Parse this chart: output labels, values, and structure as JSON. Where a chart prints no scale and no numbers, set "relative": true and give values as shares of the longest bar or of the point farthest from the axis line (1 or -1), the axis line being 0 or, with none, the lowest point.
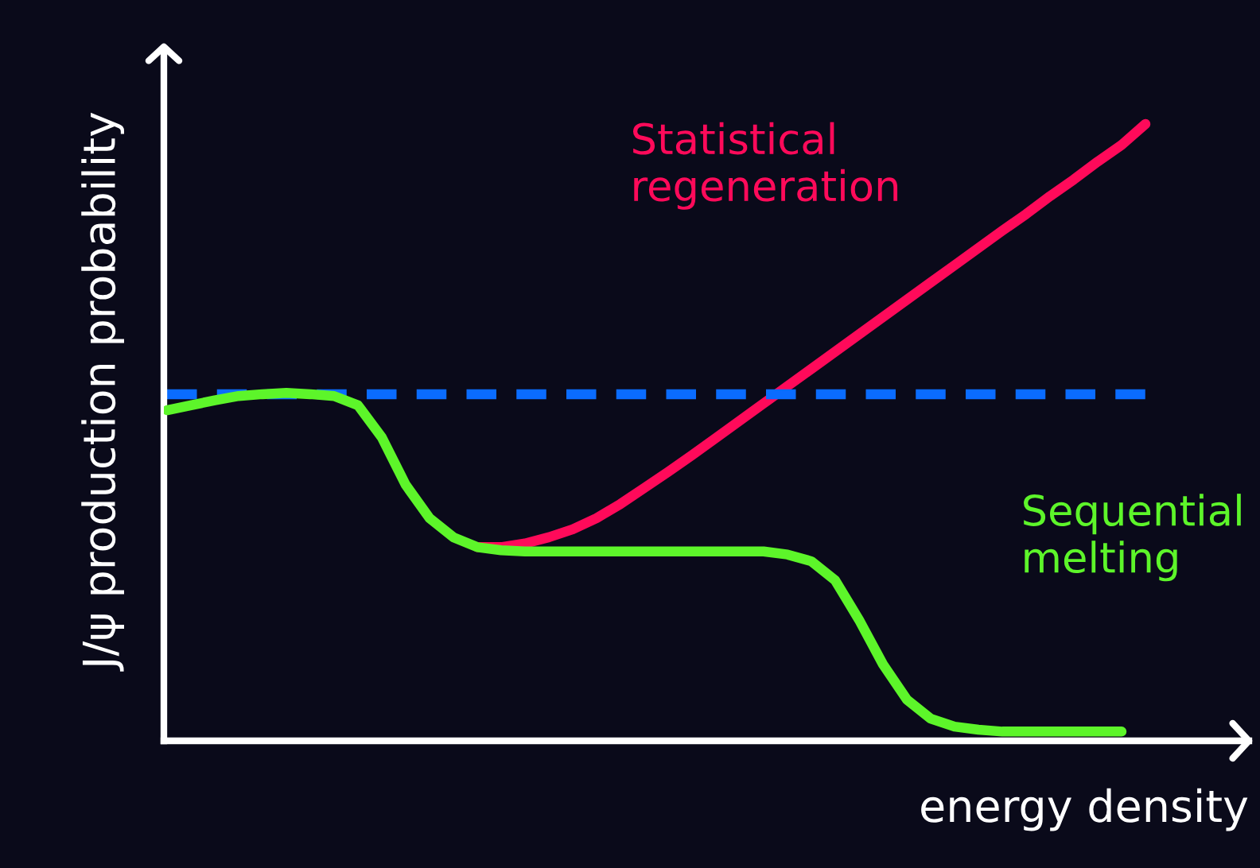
{
  "chart_data": {
    "type": "line",
    "relative": true,
    "xlabel": "energy density",
    "ylabel": "J/ψ production probability",
    "categories": [
      null,
      null,
      null,
      null,
      null,
      null,
      null,
      null,
      null,
      null,
      null,
      null,
      null,
      null,
      null,
      null,
      null,
      null,
      null,
      null,
      null,
      null,
      null,
      null,
      null,
      null,
      null,
      null,
      null,
      null,
      null,
      null,
      null,
      null,
      null,
      null,
      null,
      null,
      null,
      null,
      null,
      null
    ],
    "series": [
      {
        "color": "#0a6cff",
        "line_style": "dashed",
        "values": [
          0.562,
          0.562,
          0.562,
          0.562,
          0.562,
          0.562,
          0.562,
          0.562,
          0.562,
          0.562,
          0.562,
          0.562,
          0.562,
          0.562,
          0.562,
          0.562,
          0.562,
          0.562,
          0.562,
          0.562,
          0.562,
          0.562,
          0.562,
          0.562,
          0.562,
          0.562,
          0.562,
          0.562,
          0.562,
          0.562,
          0.562,
          0.562,
          0.562,
          0.562,
          0.562,
          0.562,
          0.562,
          0.562,
          0.562,
          0.562,
          0.562,
          0.562
        ]
      },
      {
        "name": "Statistical\nregeneration",
        "color": "#ff0a5a",
        "values": [
          null,
          null,
          null,
          null,
          null,
          null,
          null,
          null,
          null,
          null,
          null,
          null,
          null,
          0.314,
          0.314,
          0.32,
          0.33,
          0.343,
          0.361,
          0.384,
          0.41,
          0.436,
          0.463,
          0.491,
          0.519,
          0.547,
          0.575,
          0.603,
          0.631,
          0.659,
          0.687,
          0.715,
          0.743,
          0.771,
          0.799,
          0.827,
          0.854,
          0.883,
          0.91,
          0.939,
          0.966,
          1.0
        ]
      },
      {
        "name": "Sequential\nmelting",
        "color": "#5df52a",
        "values": [
          0.536,
          0.544,
          0.552,
          0.559,
          0.562,
          0.564,
          0.562,
          0.559,
          0.544,
          0.492,
          0.415,
          0.361,
          0.33,
          0.314,
          0.309,
          0.307,
          0.307,
          0.307,
          0.307,
          0.307,
          0.307,
          0.307,
          0.307,
          0.307,
          0.307,
          0.307,
          0.302,
          0.291,
          0.26,
          0.196,
          0.124,
          0.067,
          0.036,
          0.023,
          0.018,
          0.015,
          0.015,
          0.015,
          0.015,
          0.015,
          0.015,
          null
        ]
      }
    ]
  }
}
